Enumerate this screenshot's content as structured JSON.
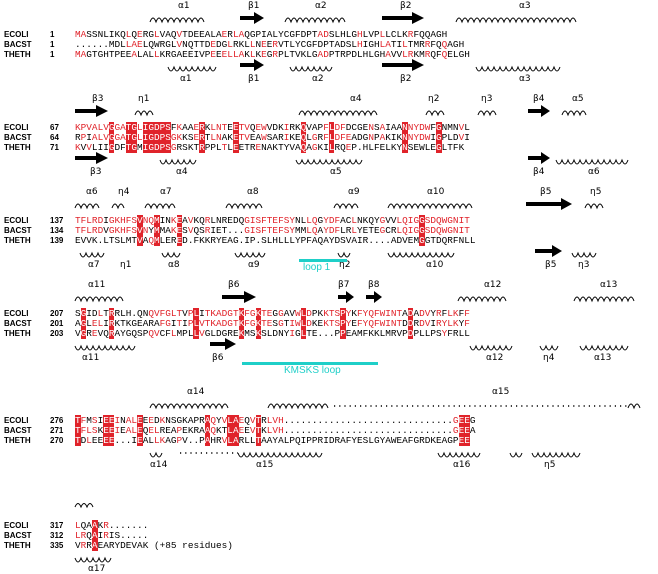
{
  "blocks": [
    {
      "top_ss": [
        "α1",
        "β1",
        "α2",
        "β2",
        "α3"
      ],
      "rows": [
        {
          "name": "ECOLI",
          "num": "1",
          "seq": "MASSNLIKQLQERGLVAQVTDEEALAERLAQGPIALYCGFDPTADSLHLGHLVPLLCLKRFQQAGH"
        },
        {
          "name": "BACST",
          "num": "1",
          "seq": "......MDLLAELQWRGLVNQTTDEDGLRKLLNEERVTLYCGFDPTADSLHIGHLATILTMRRFQQAGH"
        },
        {
          "name": "THETH",
          "num": "1",
          "seq": "MAGTGHTPEEALALLKRGAEEIVPEEELLAKLKEGRPLTVKLGADPTRPDLHLGHAVVLRKMRQFQELGH"
        }
      ],
      "bot_ss": [
        "α1",
        "β1",
        "α2",
        "β2",
        "α3"
      ]
    },
    {
      "top_ss": [
        "β3",
        "η1",
        "α4",
        "η2",
        "η3",
        "β4",
        "α5"
      ],
      "rows": [
        {
          "name": "ECOLI",
          "num": "67",
          "seq": "KPVALVGGATGLIGDPSFKAAERKLNTEETVQEWVDKIRKQVAPFLDFDCGENSAIAANNYDWFGNMNVL"
        },
        {
          "name": "BACST",
          "num": "64",
          "seq": "RPIALVGGATGLIGDPSGKKSERTLNAKETVEAWSARIKEQLGRFLDFEADGNPAKIKNNYDWIGPLDVI"
        },
        {
          "name": "THETH",
          "num": "71",
          "seq": "KVVLIIGDFTGMIGDPSGRSKTRPPLTLEETRENAKTYVAQAGKILRQEP.HLFELKYNSEWLEGLTFK"
        }
      ],
      "bot_ss": [
        "β3",
        "α4",
        "α5",
        "β4",
        "α6"
      ]
    },
    {
      "top_ss": [
        "α6",
        "η4",
        "α7",
        "α8",
        "α9",
        "α10",
        "β5",
        "η5"
      ],
      "rows": [
        {
          "name": "ECOLI",
          "num": "137",
          "seq": "TFLRDIGKHFSVNQMINKEAVKQRLNREDQGISFTEFSYNLLQGYDFACLNKQYGVVLQIGGSDQWGNIT"
        },
        {
          "name": "BACST",
          "num": "134",
          "seq": "TFLRDVGKHFSVNYMMAKESVQSRIET...GISFTEFSYMMLQAYDFLRLYETEGCRLQIGGSDQWGNIT"
        },
        {
          "name": "THETH",
          "num": "139",
          "seq": "EVVK.LTSLMTVAQMLERED.FKKRYEAG.IP.SLHLLLYPFAQAYDSVAIR....ADVEMGGTDQRFNLL"
        }
      ],
      "bot_ss": [
        "α7",
        "η1",
        "α8",
        "α9",
        "η2",
        "α10",
        "β5",
        "η3"
      ],
      "loop_label": "loop 1"
    },
    {
      "top_ss": [
        "α11",
        "β6",
        "β7",
        "β8",
        "α12",
        "α13"
      ],
      "rows": [
        {
          "name": "ECOLI",
          "num": "207",
          "seq": "SGIDLTRRLH.QNQVFGLTVPLITKADGTKFGKTEGGAVWLDPKKTSPYKFYQFWINTADADVYRFLKFF"
        },
        {
          "name": "BACST",
          "num": "201",
          "seq": "AGLELIRKTKGEARAFGITIPLVTKADGTKFGKTESGTIWLDKEKTSPYEFYQFWINTDDRDVIRYLKYF"
        },
        {
          "name": "THETH",
          "num": "203",
          "seq": "VGREVQRAYGQSPQVCFLMPLLVGLDGREKMSKSLDNYIGLTE...PPEAMFKKLMRVPDPLLPSYFRLL"
        }
      ],
      "bot_ss": [
        "α11",
        "β6",
        "α12",
        "η4",
        "α13"
      ],
      "loop_label": "KMSKS loop"
    },
    {
      "top_ss": [
        "α14",
        "α15"
      ],
      "rows": [
        {
          "name": "ECOLI",
          "num": "276",
          "seq": "TFMSIEEINALEEEDKNSGKAPRAQYVLAEQVTRLVH..............................GEEG"
        },
        {
          "name": "BACST",
          "num": "271",
          "seq": "TFLSKEEIEALEQELREAPEKRAAQKTLAEEVTKLVH..............................GEEA"
        },
        {
          "name": "THETH",
          "num": "270",
          "seq": "TDLEEEE...IEALLKAGPV..PAHRVLARLLTAAYALPQIPPRIDRAFYESLGYAWEAFGRDKEAGPEE"
        }
      ],
      "bot_ss": [
        "α14",
        "α15",
        "α16",
        "η5"
      ]
    },
    {
      "top_ss": [],
      "rows": [
        {
          "name": "ECOLI",
          "num": "317",
          "seq": "LQAAKR......."
        },
        {
          "name": "BACST",
          "num": "312",
          "seq": "LRQAIRIS....."
        },
        {
          "name": "THETH",
          "num": "335",
          "seq": "VRRAEARYDEVAK (+85 residues)"
        }
      ],
      "bot_ss": [
        "α17"
      ]
    }
  ],
  "colors": {
    "identical": "#e0232a",
    "similar": "#e0232a",
    "loop": "#1fcfc8"
  }
}
